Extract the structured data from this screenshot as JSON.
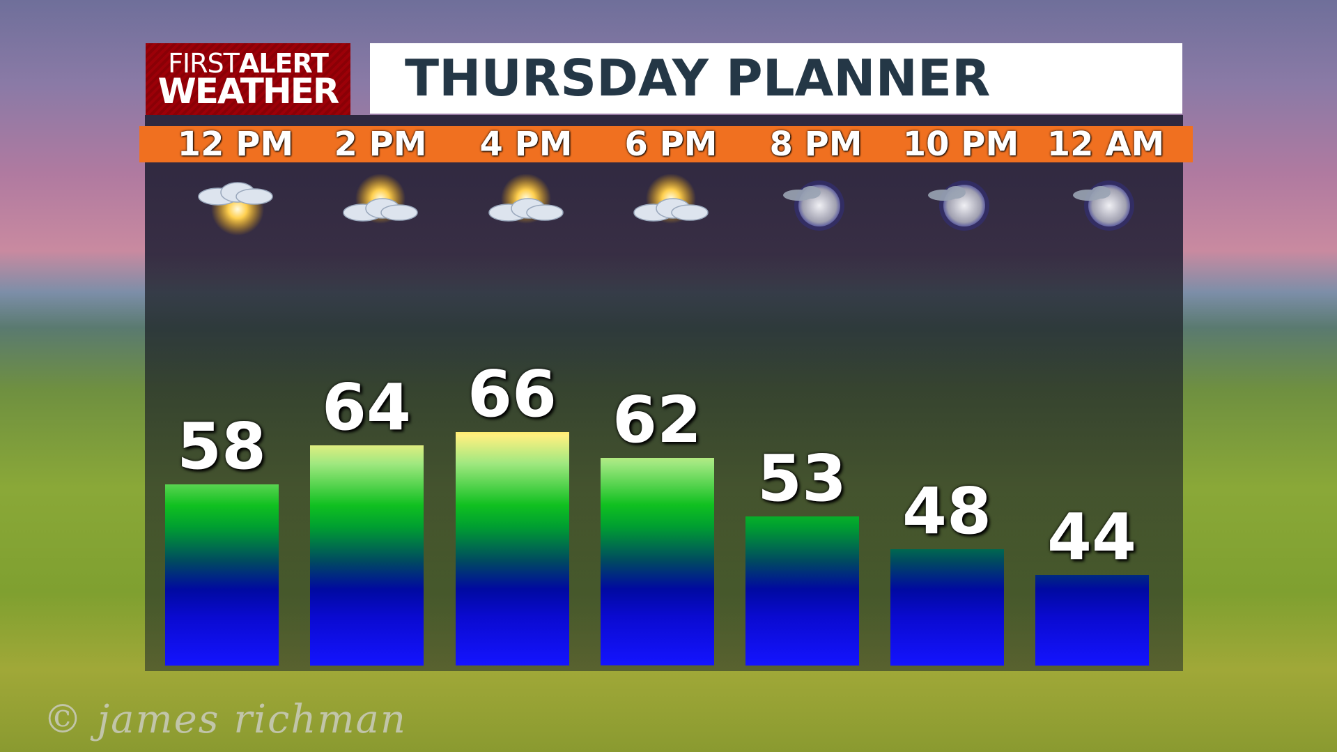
{
  "logo": {
    "line1a": "FIRST",
    "line1b": "ALERT",
    "line2": "WEATHER"
  },
  "title": "THURSDAY PLANNER",
  "watermark": "© james richman",
  "chart_data": {
    "type": "bar",
    "title": "THURSDAY PLANNER",
    "categories": [
      "12 PM",
      "2 PM",
      "4 PM",
      "6 PM",
      "8 PM",
      "10 PM",
      "12 AM"
    ],
    "values": [
      58,
      64,
      66,
      62,
      53,
      48,
      44
    ],
    "icons": [
      "partly-sunny",
      "mostly-cloudy-sun",
      "mostly-cloudy-sun",
      "mostly-cloudy-sun",
      "partly-cloudy-night",
      "partly-cloudy-night",
      "partly-cloudy-night"
    ],
    "colors": {
      "header_bar": "#f07020",
      "logo": "#9c0008",
      "title_text": "#243746",
      "bar_bottom": "#1414ff",
      "bar_mid": "#00a030",
      "bar_top": "#fff080"
    }
  }
}
